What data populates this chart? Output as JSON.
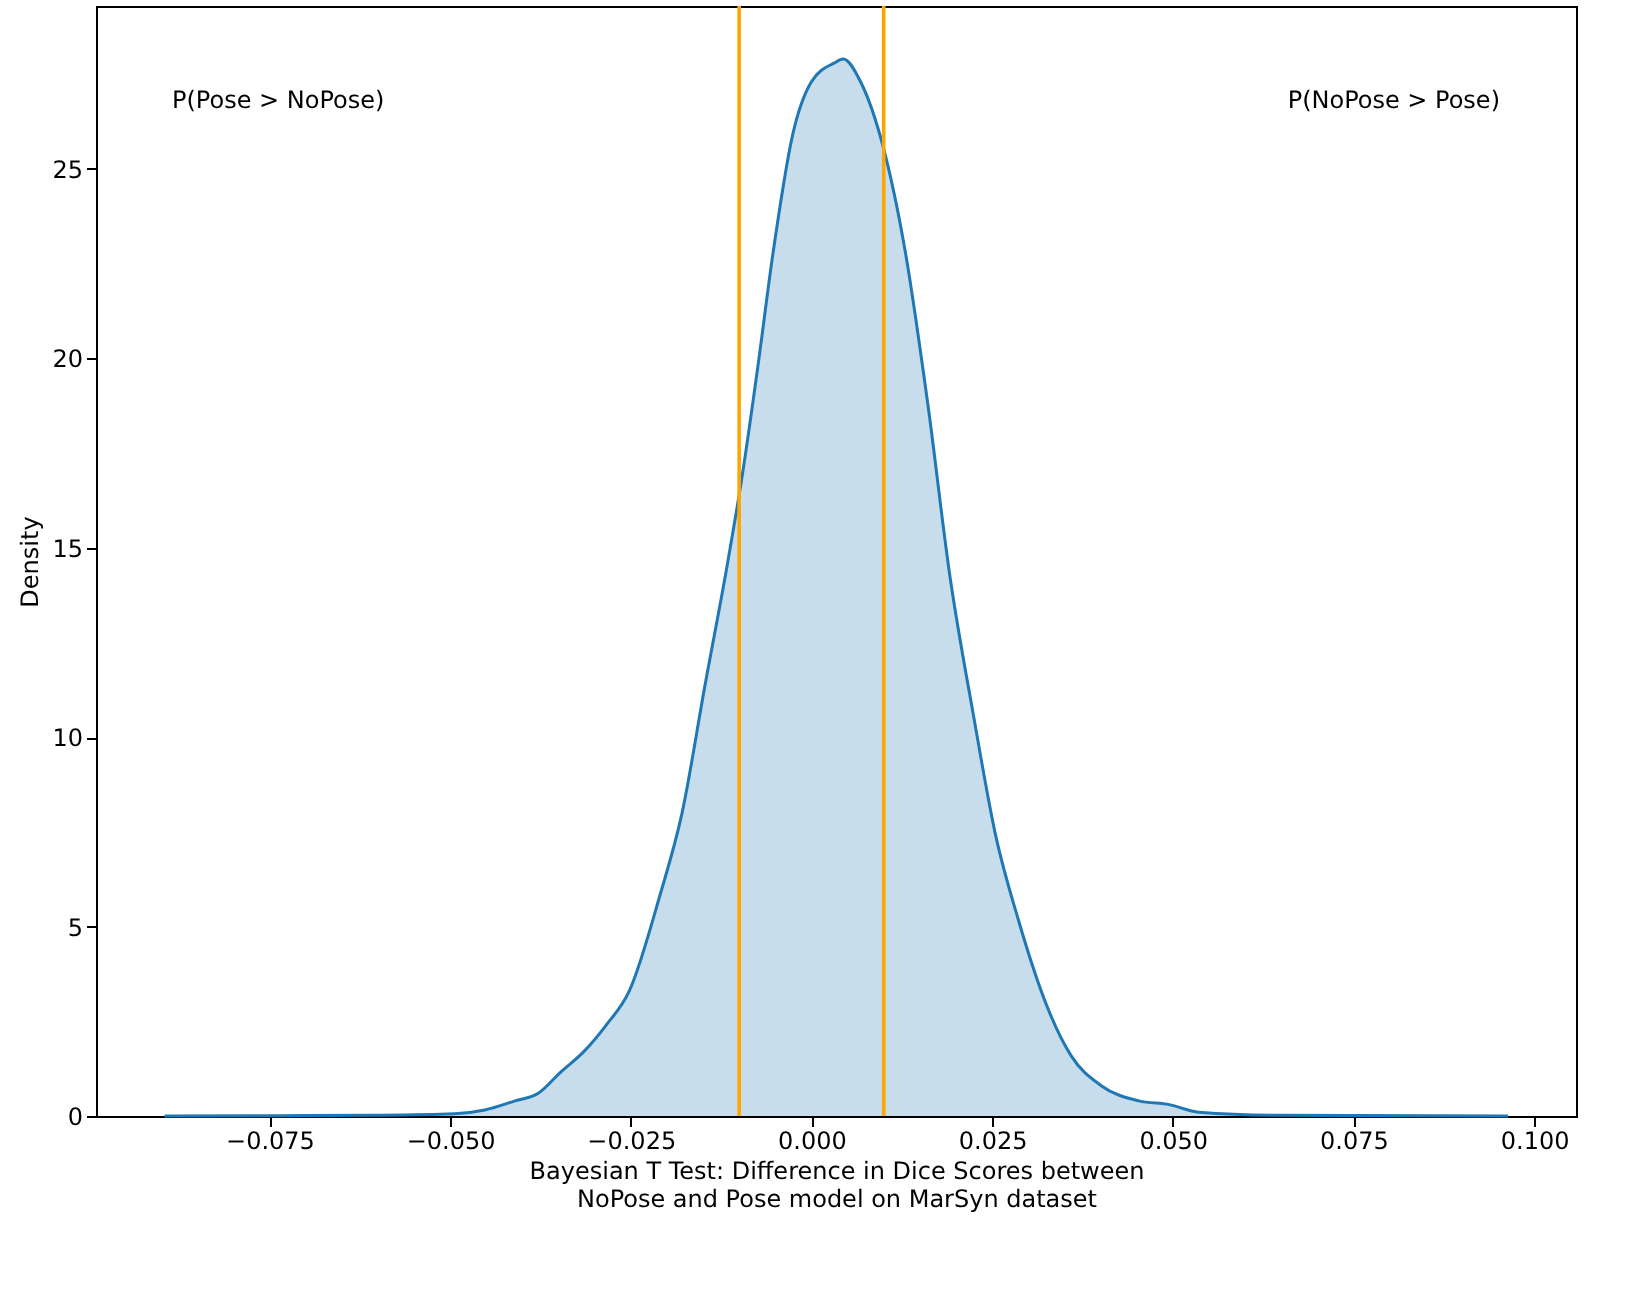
{
  "chart_data": {
    "type": "area",
    "xlabel": "Bayesian T Test: Difference in Dice Scores between\nNoPose and Pose model on MarSyn dataset",
    "ylabel": "Density",
    "annotations": [
      "P(Pose > NoPose)",
      "P(NoPose > Pose)"
    ],
    "series": [
      {
        "color": "#1f77b4",
        "x": [
          -0.0895,
          -0.07,
          -0.06,
          -0.0494,
          -0.0452,
          -0.041,
          -0.0378,
          -0.0347,
          -0.0315,
          -0.0284,
          -0.0252,
          -0.021,
          -0.0179,
          -0.0147,
          -0.0116,
          -0.0095,
          -0.0074,
          -0.0053,
          -0.0026,
          0.0,
          0.0032,
          0.0044,
          0.0068,
          0.0099,
          0.013,
          0.0161,
          0.0192,
          0.0224,
          0.0255,
          0.0286,
          0.0328,
          0.0359,
          0.0401,
          0.0453,
          0.0495,
          0.0536,
          0.064,
          0.0964
        ],
        "values": [
          0,
          0.01,
          0.02,
          0.06,
          0.16,
          0.4,
          0.6,
          1.16,
          1.7,
          2.4,
          3.3,
          5.8,
          8.0,
          11.4,
          14.6,
          17.0,
          19.8,
          22.8,
          25.9,
          27.3,
          27.8,
          27.9,
          27.3,
          25.6,
          22.8,
          18.8,
          14.2,
          10.6,
          7.4,
          5.2,
          2.8,
          1.6,
          0.8,
          0.4,
          0.3,
          0.1,
          0.02,
          0
        ]
      }
    ],
    "ref_lines": [
      {
        "axis": "x",
        "value": -0.01,
        "color": "#ffa500"
      },
      {
        "axis": "x",
        "value": 0.01,
        "color": "#ffa500"
      }
    ],
    "xlim": [
      -0.099,
      0.1058
    ],
    "ylim": [
      0,
      29.3
    ],
    "xticks": [
      {
        "value": -0.075,
        "label": "−0.075"
      },
      {
        "value": -0.05,
        "label": "−0.050"
      },
      {
        "value": -0.025,
        "label": "−0.025"
      },
      {
        "value": 0.0,
        "label": "0.000"
      },
      {
        "value": 0.025,
        "label": "0.025"
      },
      {
        "value": 0.05,
        "label": "0.050"
      },
      {
        "value": 0.075,
        "label": "0.075"
      },
      {
        "value": 0.1,
        "label": "0.100"
      }
    ],
    "yticks": [
      0,
      5,
      10,
      15,
      20,
      25
    ],
    "grid": false
  }
}
